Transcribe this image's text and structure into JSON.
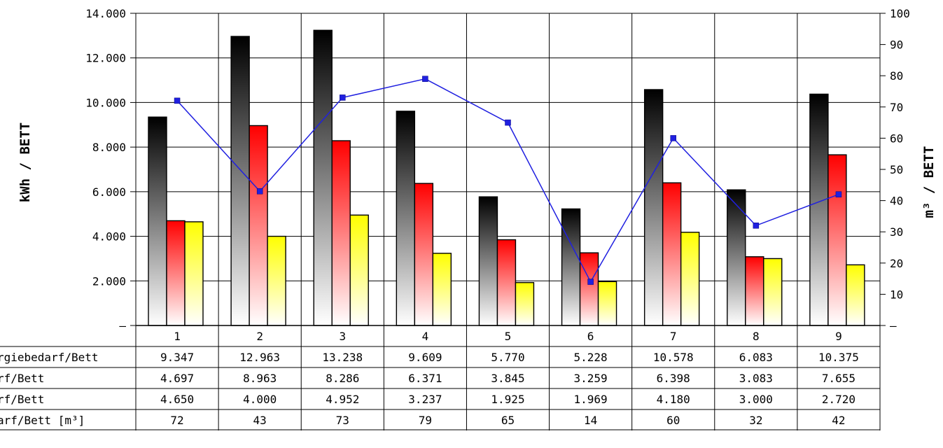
{
  "chart_data": {
    "type": "bar",
    "categories": [
      "1",
      "2",
      "3",
      "4",
      "5",
      "6",
      "7",
      "8",
      "9"
    ],
    "series": [
      {
        "name": "rgiebedarf/Bett",
        "values": [
          9347,
          12963,
          13238,
          9609,
          5770,
          5228,
          10578,
          6083,
          10375
        ],
        "color": "#000000",
        "axis": "left"
      },
      {
        "name": "rf/Bett",
        "values": [
          4697,
          8963,
          8286,
          6371,
          3845,
          3259,
          6398,
          3083,
          7655
        ],
        "color": "#ff0000",
        "axis": "left"
      },
      {
        "name": "rf/Bett",
        "values": [
          4650,
          4000,
          4952,
          3237,
          1925,
          1969,
          4180,
          3000,
          2720
        ],
        "color": "#ffff00",
        "axis": "left"
      },
      {
        "name": "arf/Bett [m³]",
        "values": [
          72,
          43,
          73,
          79,
          65,
          14,
          60,
          32,
          42
        ],
        "color": "#2020e0",
        "axis": "right",
        "type": "line"
      }
    ],
    "ylabel": "kWh / BETT",
    "y2label": "m³ / BETT",
    "ylim": [
      0,
      14000
    ],
    "y2lim": [
      0,
      100
    ],
    "yticks": [
      0,
      2000,
      4000,
      6000,
      8000,
      10000,
      12000,
      14000
    ],
    "yticklabels": [
      "–",
      "2.000",
      "4.000",
      "6.000",
      "8.000",
      "10.000",
      "12.000",
      "14.000"
    ],
    "y2ticks": [
      0,
      10,
      20,
      30,
      40,
      50,
      60,
      70,
      80,
      90,
      100
    ],
    "y2ticklabels": [
      "–",
      "10",
      "20",
      "30",
      "40",
      "50",
      "60",
      "70",
      "80",
      "90",
      "100"
    ],
    "grid": true,
    "table": {
      "rows": [
        {
          "label": "rgiebedarf/Bett",
          "cells": [
            "9.347",
            "12.963",
            "13.238",
            "9.609",
            "5.770",
            "5.228",
            "10.578",
            "6.083",
            "10.375"
          ]
        },
        {
          "label": "rf/Bett",
          "cells": [
            "4.697",
            "8.963",
            "8.286",
            "6.371",
            "3.845",
            "3.259",
            "6.398",
            "3.083",
            "7.655"
          ]
        },
        {
          "label": "rf/Bett",
          "cells": [
            "4.650",
            "4.000",
            "4.952",
            "3.237",
            "1.925",
            "1.969",
            "4.180",
            "3.000",
            "2.720"
          ]
        },
        {
          "label": "arf/Bett [m³]",
          "cells": [
            "72",
            "43",
            "73",
            "79",
            "65",
            "14",
            "60",
            "32",
            "42"
          ]
        }
      ]
    }
  }
}
